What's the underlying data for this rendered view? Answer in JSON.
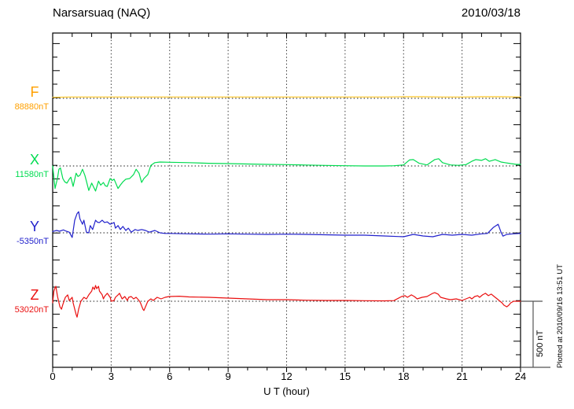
{
  "header": {
    "title": "Narsarsuaq (NAQ)",
    "date": "2010/03/18"
  },
  "axes": {
    "x_label": "U T (hour)",
    "x_ticks": [
      "0",
      "3",
      "6",
      "9",
      "12",
      "15",
      "18",
      "21",
      "24"
    ],
    "x_min": 0,
    "x_max": 24,
    "grid_hours": [
      3,
      6,
      9,
      12,
      15,
      18,
      21
    ]
  },
  "scale_bar": {
    "label": "500 nT",
    "span_nT": 500
  },
  "footnote": "Plotted at 2010/09/16 13:51 UT",
  "colors": {
    "frame": "#000000",
    "grid": "#3a3a3a",
    "baseline_dots": "#1a1a1a",
    "background": "#ffffff"
  },
  "chart_data": {
    "type": "line",
    "title": "Narsarsuaq (NAQ)",
    "subtitle": "2010/03/18",
    "xlabel": "U T (hour)",
    "x_range": [
      0,
      24
    ],
    "x_tick_minor_step": 1,
    "x_tick_major_step": 3,
    "grid": "dotted-vertical-every-3h",
    "legend_position": "left-margin",
    "scale_bar_nT": 500,
    "series": [
      {
        "name": "F",
        "label": "F",
        "baseline_label": "88880nT",
        "baseline_nT": 88880,
        "label_color": "#FFA000",
        "line_color": "#FFC525",
        "points": [
          [
            0,
            8
          ],
          [
            1,
            10
          ],
          [
            2,
            10
          ],
          [
            3,
            10
          ],
          [
            4,
            10
          ],
          [
            5,
            10
          ],
          [
            6,
            10
          ],
          [
            7,
            10
          ],
          [
            8,
            10
          ],
          [
            9,
            10
          ],
          [
            10,
            10
          ],
          [
            11,
            10
          ],
          [
            12,
            10
          ],
          [
            13,
            10
          ],
          [
            14,
            10
          ],
          [
            15,
            10
          ],
          [
            16,
            10
          ],
          [
            17,
            10
          ],
          [
            18,
            12
          ],
          [
            19,
            12
          ],
          [
            20,
            10
          ],
          [
            21,
            10
          ],
          [
            22,
            12
          ],
          [
            23,
            12
          ],
          [
            24,
            10
          ]
        ]
      },
      {
        "name": "X",
        "label": "X",
        "baseline_label": "11580nT",
        "baseline_nT": 11580,
        "label_color": "#00DC50",
        "line_color": "#00DC50",
        "points": [
          [
            0,
            0
          ],
          [
            0.12,
            -170
          ],
          [
            0.25,
            -90
          ],
          [
            0.32,
            -25
          ],
          [
            0.4,
            -15
          ],
          [
            0.52,
            -95
          ],
          [
            0.62,
            -120
          ],
          [
            0.73,
            -130
          ],
          [
            0.85,
            -100
          ],
          [
            0.93,
            -85
          ],
          [
            1.05,
            -155
          ],
          [
            1.2,
            -55
          ],
          [
            1.3,
            -80
          ],
          [
            1.4,
            -70
          ],
          [
            1.53,
            -25
          ],
          [
            1.65,
            -70
          ],
          [
            1.73,
            -115
          ],
          [
            1.85,
            -185
          ],
          [
            2.0,
            -130
          ],
          [
            2.1,
            -160
          ],
          [
            2.2,
            -190
          ],
          [
            2.35,
            -115
          ],
          [
            2.46,
            -145
          ],
          [
            2.6,
            -125
          ],
          [
            2.7,
            -150
          ],
          [
            2.8,
            -155
          ],
          [
            2.95,
            -95
          ],
          [
            3.05,
            -110
          ],
          [
            3.15,
            -100
          ],
          [
            3.35,
            -170
          ],
          [
            3.47,
            -145
          ],
          [
            3.6,
            -120
          ],
          [
            3.75,
            -100
          ],
          [
            3.95,
            -95
          ],
          [
            4.15,
            -65
          ],
          [
            4.28,
            -25
          ],
          [
            4.43,
            -55
          ],
          [
            4.56,
            -125
          ],
          [
            4.68,
            -95
          ],
          [
            4.88,
            -65
          ],
          [
            5.04,
            5
          ],
          [
            5.24,
            25
          ],
          [
            5.5,
            30
          ],
          [
            6,
            28
          ],
          [
            7,
            25
          ],
          [
            8,
            20
          ],
          [
            9,
            18
          ],
          [
            10,
            15
          ],
          [
            11,
            12
          ],
          [
            12,
            10
          ],
          [
            13,
            7
          ],
          [
            14,
            4
          ],
          [
            15,
            2
          ],
          [
            16,
            0
          ],
          [
            17,
            0
          ],
          [
            17.5,
            2
          ],
          [
            18,
            8
          ],
          [
            18.3,
            45
          ],
          [
            18.5,
            48
          ],
          [
            18.8,
            20
          ],
          [
            19.2,
            8
          ],
          [
            19.6,
            48
          ],
          [
            19.8,
            55
          ],
          [
            20,
            25
          ],
          [
            20.4,
            8
          ],
          [
            20.8,
            5
          ],
          [
            21.2,
            10
          ],
          [
            21.5,
            35
          ],
          [
            21.7,
            48
          ],
          [
            22,
            42
          ],
          [
            22.2,
            55
          ],
          [
            22.4,
            35
          ],
          [
            22.7,
            48
          ],
          [
            23,
            30
          ],
          [
            23.2,
            25
          ],
          [
            23.5,
            18
          ],
          [
            23.8,
            12
          ],
          [
            24,
            12
          ]
        ]
      },
      {
        "name": "Y",
        "label": "Y",
        "baseline_label": "-5350nT",
        "baseline_nT": -5350,
        "label_color": "#2222CC",
        "line_color": "#2222CC",
        "points": [
          [
            0,
            10
          ],
          [
            0.2,
            18
          ],
          [
            0.35,
            12
          ],
          [
            0.55,
            22
          ],
          [
            0.7,
            12
          ],
          [
            0.85,
            5
          ],
          [
            1.0,
            -35
          ],
          [
            1.13,
            95
          ],
          [
            1.25,
            145
          ],
          [
            1.33,
            160
          ],
          [
            1.4,
            105
          ],
          [
            1.53,
            65
          ],
          [
            1.6,
            95
          ],
          [
            1.73,
            5
          ],
          [
            1.85,
            0
          ],
          [
            1.93,
            55
          ],
          [
            2.05,
            25
          ],
          [
            2.2,
            95
          ],
          [
            2.3,
            80
          ],
          [
            2.4,
            78
          ],
          [
            2.54,
            95
          ],
          [
            2.66,
            78
          ],
          [
            2.8,
            83
          ],
          [
            2.95,
            65
          ],
          [
            3.15,
            78
          ],
          [
            3.22,
            35
          ],
          [
            3.35,
            55
          ],
          [
            3.47,
            25
          ],
          [
            3.6,
            48
          ],
          [
            3.75,
            18
          ],
          [
            3.88,
            35
          ],
          [
            4.03,
            5
          ],
          [
            4.23,
            25
          ],
          [
            4.36,
            18
          ],
          [
            4.56,
            25
          ],
          [
            4.76,
            18
          ],
          [
            4.96,
            5
          ],
          [
            5.24,
            18
          ],
          [
            5.5,
            0
          ],
          [
            5.77,
            -5
          ],
          [
            6.04,
            -5
          ],
          [
            7,
            -8
          ],
          [
            8,
            -10
          ],
          [
            9,
            -8
          ],
          [
            10,
            -10
          ],
          [
            11,
            -12
          ],
          [
            12,
            -10
          ],
          [
            13,
            -12
          ],
          [
            14,
            -15
          ],
          [
            15,
            -18
          ],
          [
            16,
            -18
          ],
          [
            17,
            -24
          ],
          [
            18,
            -30
          ],
          [
            18.5,
            -12
          ],
          [
            19,
            -24
          ],
          [
            19.5,
            -30
          ],
          [
            20,
            -12
          ],
          [
            20.5,
            -18
          ],
          [
            21,
            -12
          ],
          [
            21.5,
            -18
          ],
          [
            22,
            -8
          ],
          [
            22.3,
            -5
          ],
          [
            22.6,
            40
          ],
          [
            22.85,
            65
          ],
          [
            23,
            5
          ],
          [
            23.1,
            -25
          ],
          [
            23.3,
            -12
          ],
          [
            23.6,
            -8
          ],
          [
            24,
            -5
          ]
        ]
      },
      {
        "name": "Z",
        "label": "Z",
        "baseline_label": "53020nT",
        "baseline_nT": 53020,
        "label_color": "#EA1010",
        "line_color": "#EA1010",
        "points": [
          [
            0,
            -12
          ],
          [
            0.06,
            75
          ],
          [
            0.13,
            105
          ],
          [
            0.16,
            113
          ],
          [
            0.25,
            35
          ],
          [
            0.37,
            -42
          ],
          [
            0.45,
            -60
          ],
          [
            0.52,
            -25
          ],
          [
            0.65,
            30
          ],
          [
            0.77,
            48
          ],
          [
            0.85,
            5
          ],
          [
            1.0,
            30
          ],
          [
            1.05,
            -12
          ],
          [
            1.2,
            -100
          ],
          [
            1.25,
            -120
          ],
          [
            1.33,
            -60
          ],
          [
            1.45,
            0
          ],
          [
            1.6,
            30
          ],
          [
            1.73,
            18
          ],
          [
            1.85,
            48
          ],
          [
            2.0,
            77
          ],
          [
            2.06,
            107
          ],
          [
            2.14,
            89
          ],
          [
            2.2,
            119
          ],
          [
            2.26,
            95
          ],
          [
            2.35,
            113
          ],
          [
            2.4,
            77
          ],
          [
            2.54,
            48
          ],
          [
            2.6,
            18
          ],
          [
            2.66,
            36
          ],
          [
            2.8,
            60
          ],
          [
            2.95,
            30
          ],
          [
            3.0,
            0
          ],
          [
            3.15,
            6
          ],
          [
            3.22,
            30
          ],
          [
            3.35,
            48
          ],
          [
            3.43,
            60
          ],
          [
            3.56,
            18
          ],
          [
            3.7,
            36
          ],
          [
            3.83,
            6
          ],
          [
            3.9,
            30
          ],
          [
            4.03,
            36
          ],
          [
            4.15,
            18
          ],
          [
            4.28,
            30
          ],
          [
            4.43,
            6
          ],
          [
            4.5,
            -12
          ],
          [
            4.63,
            -60
          ],
          [
            4.68,
            -70
          ],
          [
            4.76,
            -42
          ],
          [
            4.88,
            0
          ],
          [
            5.04,
            18
          ],
          [
            5.16,
            6
          ],
          [
            5.36,
            30
          ],
          [
            5.56,
            18
          ],
          [
            5.77,
            30
          ],
          [
            5.97,
            36
          ],
          [
            6.5,
            38
          ],
          [
            7,
            33
          ],
          [
            8,
            30
          ],
          [
            9,
            24
          ],
          [
            10,
            18
          ],
          [
            11,
            12
          ],
          [
            12,
            12
          ],
          [
            13,
            8
          ],
          [
            14,
            6
          ],
          [
            15,
            6
          ],
          [
            16,
            4
          ],
          [
            17,
            3
          ],
          [
            17.5,
            5
          ],
          [
            17.9,
            36
          ],
          [
            18.07,
            42
          ],
          [
            18.2,
            30
          ],
          [
            18.4,
            48
          ],
          [
            18.55,
            36
          ],
          [
            18.7,
            18
          ],
          [
            18.95,
            30
          ],
          [
            19.2,
            36
          ],
          [
            19.5,
            60
          ],
          [
            19.6,
            65
          ],
          [
            19.77,
            54
          ],
          [
            19.9,
            30
          ],
          [
            20.2,
            18
          ],
          [
            20.4,
            12
          ],
          [
            20.7,
            18
          ],
          [
            21,
            6
          ],
          [
            21.2,
            18
          ],
          [
            21.4,
            30
          ],
          [
            21.5,
            18
          ],
          [
            21.65,
            36
          ],
          [
            21.8,
            42
          ],
          [
            21.9,
            30
          ],
          [
            22.05,
            48
          ],
          [
            22.2,
            60
          ],
          [
            22.35,
            42
          ],
          [
            22.5,
            54
          ],
          [
            22.65,
            36
          ],
          [
            22.8,
            18
          ],
          [
            22.9,
            6
          ],
          [
            23.05,
            -12
          ],
          [
            23.15,
            -30
          ],
          [
            23.3,
            -42
          ],
          [
            23.4,
            -30
          ],
          [
            23.5,
            -12
          ],
          [
            23.65,
            0
          ],
          [
            23.8,
            0
          ],
          [
            24,
            0
          ]
        ]
      }
    ]
  }
}
